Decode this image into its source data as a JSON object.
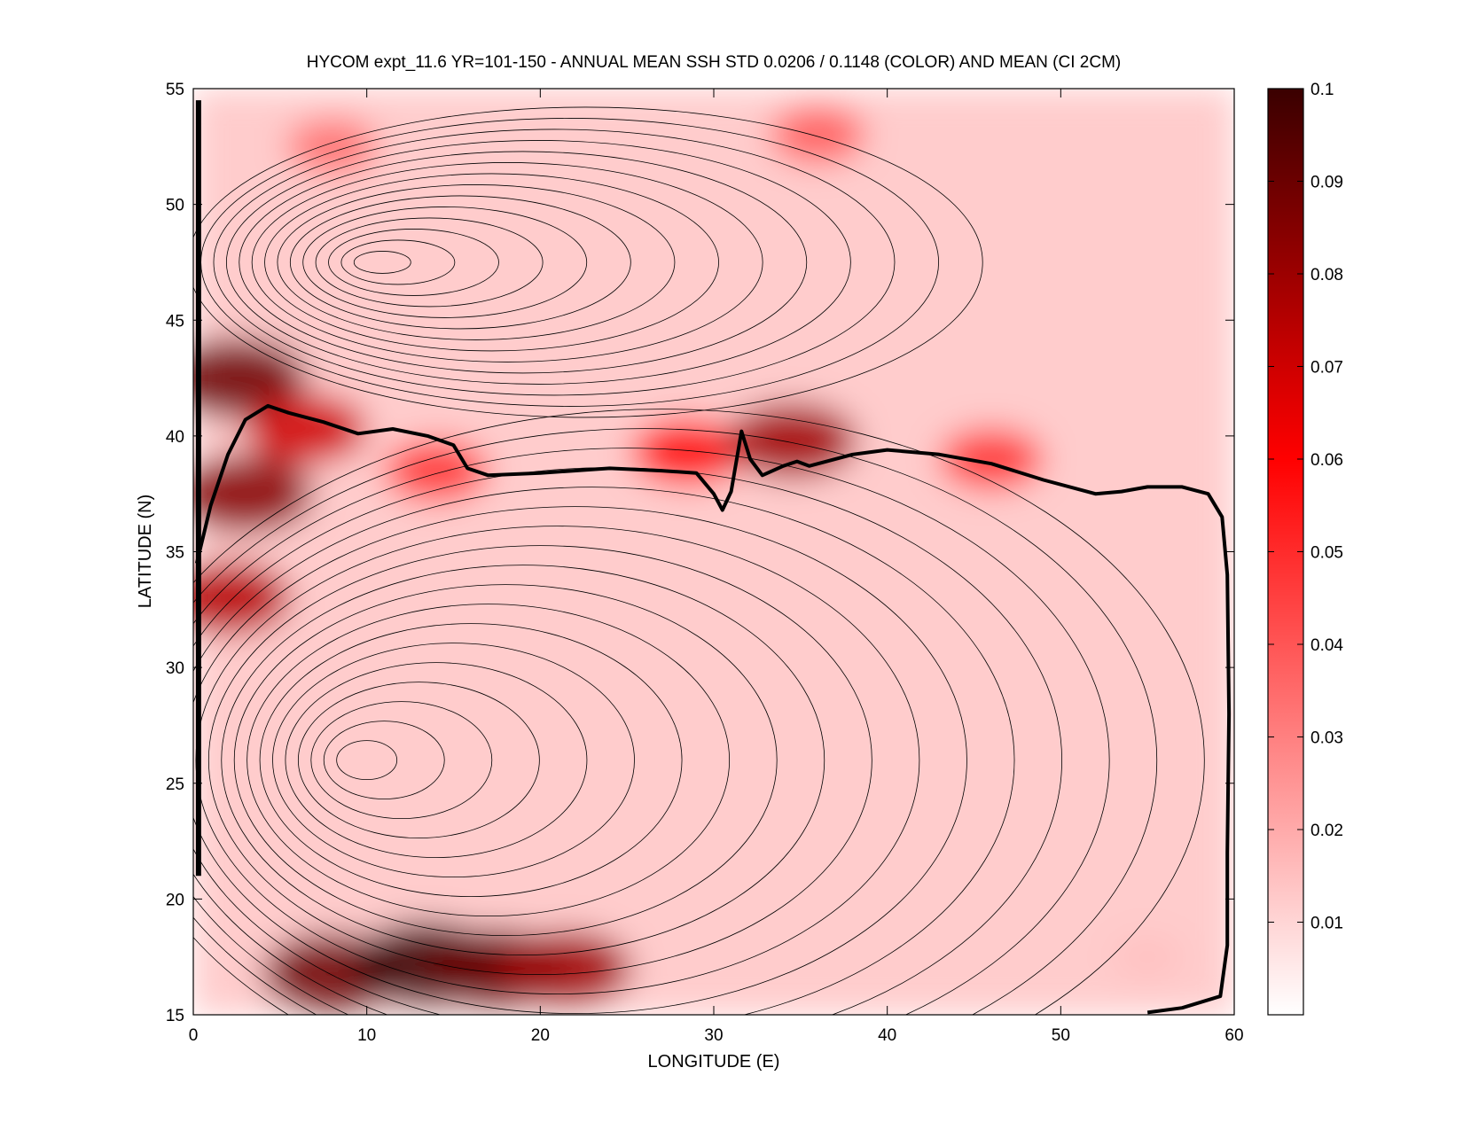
{
  "chart_data": {
    "type": "heatmap",
    "title": "HYCOM expt_11.6 YR=101-150 - ANNUAL MEAN SSH STD 0.0206 / 0.1148 (COLOR) AND MEAN (CI 2CM)",
    "xlabel": "LONGITUDE (E)",
    "ylabel": "LATITUDE (N)",
    "xlim": [
      0,
      60
    ],
    "ylim": [
      15,
      55
    ],
    "x_ticks": [
      0,
      10,
      20,
      30,
      40,
      50,
      60
    ],
    "y_ticks": [
      15,
      20,
      25,
      30,
      35,
      40,
      45,
      50,
      55
    ],
    "colorbar": {
      "range": [
        0,
        0.1
      ],
      "ticks": [
        "0.01",
        "0.02",
        "0.03",
        "0.04",
        "0.05",
        "0.06",
        "0.07",
        "0.08",
        "0.09",
        "0.1"
      ],
      "colors": [
        "#ffffff",
        "#ff0000",
        "#3a0000"
      ]
    },
    "ssh_std_max_regions": [
      {
        "lon": 2.5,
        "lat": 42.5,
        "value": 0.09
      },
      {
        "lon": 3.0,
        "lat": 37.5,
        "value": 0.085
      },
      {
        "lon": 2.0,
        "lat": 33.0,
        "value": 0.075
      },
      {
        "lon": 8.0,
        "lat": 16.8,
        "value": 0.09
      },
      {
        "lon": 13.5,
        "lat": 17.2,
        "value": 0.1
      },
      {
        "lon": 17.5,
        "lat": 17.0,
        "value": 0.09
      },
      {
        "lon": 21.5,
        "lat": 17.0,
        "value": 0.08
      },
      {
        "lon": 6.5,
        "lat": 40.3,
        "value": 0.07
      },
      {
        "lon": 14.0,
        "lat": 38.5,
        "value": 0.05
      },
      {
        "lon": 28.5,
        "lat": 39.3,
        "value": 0.06
      },
      {
        "lon": 34.5,
        "lat": 39.8,
        "value": 0.08
      },
      {
        "lon": 46.0,
        "lat": 39.0,
        "value": 0.05
      },
      {
        "lon": 36.0,
        "lat": 53.0,
        "value": 0.04
      },
      {
        "lon": 8.0,
        "lat": 52.5,
        "value": 0.035
      },
      {
        "lon": 55.0,
        "lat": 17.5,
        "value": 0.015
      }
    ],
    "zero_mean_contour": [
      [
        0.2,
        34.5
      ],
      [
        1.0,
        37.0
      ],
      [
        2.0,
        39.2
      ],
      [
        3.0,
        40.7
      ],
      [
        4.3,
        41.3
      ],
      [
        5.5,
        41.0
      ],
      [
        7.5,
        40.6
      ],
      [
        9.5,
        40.1
      ],
      [
        11.5,
        40.3
      ],
      [
        13.5,
        40.0
      ],
      [
        15.0,
        39.6
      ],
      [
        15.8,
        38.6
      ],
      [
        17.0,
        38.3
      ],
      [
        20.0,
        38.4
      ],
      [
        24.0,
        38.6
      ],
      [
        27.0,
        38.5
      ],
      [
        29.0,
        38.4
      ],
      [
        30.0,
        37.5
      ],
      [
        30.5,
        36.8
      ],
      [
        31.0,
        37.6
      ],
      [
        31.6,
        40.2
      ],
      [
        32.1,
        39.0
      ],
      [
        32.8,
        38.3
      ],
      [
        34.0,
        38.7
      ],
      [
        34.8,
        38.9
      ],
      [
        35.5,
        38.7
      ],
      [
        38.0,
        39.2
      ],
      [
        40.0,
        39.4
      ],
      [
        43.0,
        39.2
      ],
      [
        46.0,
        38.8
      ],
      [
        49.0,
        38.1
      ],
      [
        52.0,
        37.5
      ],
      [
        53.5,
        37.6
      ],
      [
        55.0,
        37.8
      ],
      [
        57.0,
        37.8
      ],
      [
        58.5,
        37.5
      ],
      [
        59.3,
        36.5
      ],
      [
        59.6,
        34.0
      ],
      [
        59.7,
        28.0
      ],
      [
        59.6,
        22.0
      ],
      [
        59.6,
        18.0
      ],
      [
        59.2,
        15.8
      ],
      [
        57.0,
        15.3
      ],
      [
        55.0,
        15.1
      ]
    ]
  }
}
